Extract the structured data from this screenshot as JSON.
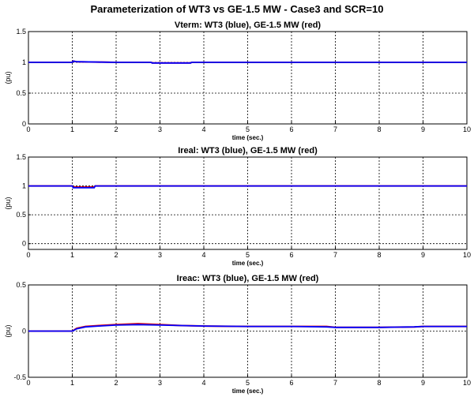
{
  "figure": {
    "title": "Parameterization of WT3 vs GE-1.5 MW - Case3 and SCR=10"
  },
  "chart_data": [
    {
      "type": "line",
      "title": "Vterm: WT3 (blue), GE-1.5 MW (red)",
      "xlabel": "time (sec.)",
      "ylabel": "(pu)",
      "xlim": [
        0,
        10
      ],
      "ylim": [
        0,
        1.5
      ],
      "xticks": [
        "0",
        "1",
        "2",
        "3",
        "4",
        "5",
        "6",
        "7",
        "8",
        "9",
        "10"
      ],
      "yticks": [
        "0",
        "0.5",
        "1",
        "1.5"
      ],
      "ytick_values": [
        0,
        0.5,
        1,
        1.5
      ],
      "grid": true,
      "series": [
        {
          "color": "#e00000",
          "x": [
            0,
            1,
            1.02,
            1.1,
            2.0,
            2.8,
            2.82,
            3.7,
            3.72,
            4.5,
            10
          ],
          "y": [
            1.0,
            1.0,
            1.02,
            1.01,
            1.0,
            1.0,
            0.99,
            0.99,
            1.0,
            1.0,
            1.0
          ]
        },
        {
          "color": "#0000ff",
          "x": [
            0,
            1,
            1.02,
            1.1,
            2.0,
            2.8,
            2.82,
            3.7,
            3.72,
            4.5,
            10
          ],
          "y": [
            1.0,
            1.0,
            1.02,
            1.01,
            1.0,
            1.0,
            0.99,
            0.99,
            1.0,
            1.0,
            1.0
          ]
        }
      ]
    },
    {
      "type": "line",
      "title": "Ireal: WT3 (blue), GE-1.5 MW (red)",
      "xlabel": "time (sec.)",
      "ylabel": "(pu)",
      "xlim": [
        0,
        10
      ],
      "ylim": [
        -0.1,
        1.5
      ],
      "xticks": [
        "0",
        "1",
        "2",
        "3",
        "4",
        "5",
        "6",
        "7",
        "8",
        "9",
        "10"
      ],
      "yticks": [
        "0",
        "0.5",
        "1",
        "1.5"
      ],
      "ytick_values": [
        0,
        0.5,
        1,
        1.5
      ],
      "grid": true,
      "series": [
        {
          "color": "#e00000",
          "x": [
            0,
            1,
            1.02,
            1.5,
            1.52,
            10
          ],
          "y": [
            1.0,
            1.0,
            0.98,
            0.98,
            1.0,
            1.0
          ]
        },
        {
          "color": "#0000ff",
          "x": [
            0,
            1,
            1.02,
            1.5,
            1.52,
            10
          ],
          "y": [
            1.0,
            1.0,
            0.97,
            0.97,
            1.0,
            1.0
          ]
        }
      ]
    },
    {
      "type": "line",
      "title": "Ireac: WT3 (blue), GE-1.5 MW (red)",
      "xlabel": "time (sec.)",
      "ylabel": "(pu)",
      "xlim": [
        0,
        10
      ],
      "ylim": [
        -0.5,
        0.5
      ],
      "xticks": [
        "0",
        "1",
        "2",
        "3",
        "4",
        "5",
        "6",
        "7",
        "8",
        "9",
        "10"
      ],
      "yticks": [
        "-0.5",
        "0",
        "0.5"
      ],
      "ytick_values": [
        -0.5,
        0,
        0.5
      ],
      "grid": true,
      "series": [
        {
          "color": "#e00000",
          "x": [
            0,
            1,
            1.1,
            1.3,
            1.6,
            2.0,
            2.5,
            3.0,
            3.5,
            4.0,
            5.0,
            6.0,
            6.8,
            7.0,
            8.0,
            8.8,
            9.0,
            10
          ],
          "y": [
            0,
            0,
            0.03,
            0.05,
            0.06,
            0.07,
            0.08,
            0.07,
            0.06,
            0.055,
            0.05,
            0.05,
            0.05,
            0.04,
            0.04,
            0.045,
            0.05,
            0.05
          ]
        },
        {
          "color": "#0000ff",
          "x": [
            0,
            1,
            1.1,
            1.3,
            1.6,
            2.0,
            2.5,
            3.0,
            3.5,
            4.0,
            5.0,
            6.0,
            6.8,
            7.0,
            8.0,
            8.8,
            9.0,
            10
          ],
          "y": [
            0,
            0,
            0.025,
            0.045,
            0.055,
            0.065,
            0.07,
            0.065,
            0.06,
            0.055,
            0.05,
            0.05,
            0.045,
            0.04,
            0.04,
            0.045,
            0.05,
            0.05
          ]
        }
      ]
    }
  ]
}
